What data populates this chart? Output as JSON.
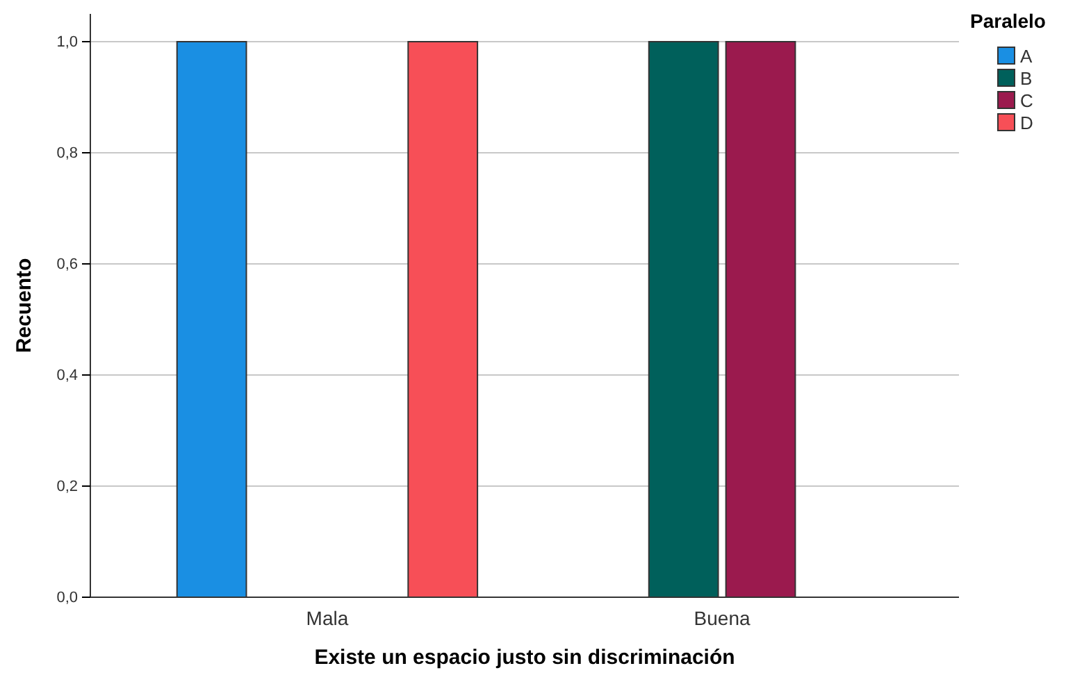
{
  "chart_data": {
    "type": "bar",
    "xlabel": "Existe un espacio justo sin discriminación",
    "ylabel": "Recuento",
    "legend_title": "Paralelo",
    "categories": [
      "Mala",
      "Buena"
    ],
    "series": [
      {
        "name": "A",
        "color": "#1a8fe3",
        "values": [
          1,
          null
        ]
      },
      {
        "name": "B",
        "color": "#00605b",
        "values": [
          null,
          1
        ]
      },
      {
        "name": "C",
        "color": "#9b1a4e",
        "values": [
          null,
          1
        ]
      },
      {
        "name": "D",
        "color": "#f74f57",
        "values": [
          1,
          null
        ]
      }
    ],
    "ylim": [
      0,
      1.05
    ],
    "yticks": [
      {
        "value": 0,
        "label": "0,0"
      },
      {
        "value": 0.2,
        "label": "0,2"
      },
      {
        "value": 0.4,
        "label": "0,4"
      },
      {
        "value": 0.6,
        "label": "0,6"
      },
      {
        "value": 0.8,
        "label": "0,8"
      },
      {
        "value": 1,
        "label": "1,0"
      }
    ],
    "grid": "y",
    "legend": "top right"
  }
}
